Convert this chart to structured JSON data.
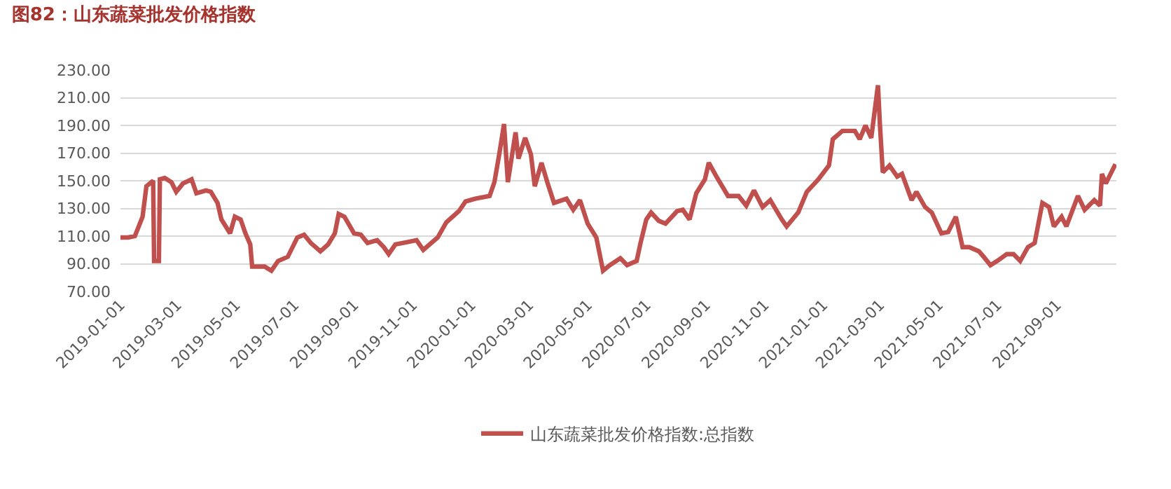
{
  "chart_data": {
    "type": "line",
    "title": "图82：山东蔬菜批发价格指数",
    "x": [
      "2019-01-01",
      "2019-01-09",
      "2019-01-16",
      "2019-01-24",
      "2019-01-28",
      "2019-02-04",
      "2019-02-05",
      "2019-02-10",
      "2019-02-11",
      "2019-02-16",
      "2019-02-23",
      "2019-02-28",
      "2019-03-07",
      "2019-03-16",
      "2019-03-21",
      "2019-03-31",
      "2019-04-05",
      "2019-04-12",
      "2019-04-16",
      "2019-04-25",
      "2019-04-30",
      "2019-05-06",
      "2019-05-11",
      "2019-05-16",
      "2019-05-18",
      "2019-05-31",
      "2019-06-07",
      "2019-06-14",
      "2019-06-24",
      "2019-07-04",
      "2019-07-11",
      "2019-07-18",
      "2019-07-28",
      "2019-08-05",
      "2019-08-12",
      "2019-08-16",
      "2019-08-22",
      "2019-09-01",
      "2019-09-08",
      "2019-09-15",
      "2019-09-25",
      "2019-10-02",
      "2019-10-07",
      "2019-10-14",
      "2019-10-29",
      "2019-11-05",
      "2019-11-12",
      "2019-11-27",
      "2019-12-06",
      "2019-12-19",
      "2019-12-26",
      "2020-01-05",
      "2020-01-20",
      "2020-01-25",
      "2020-01-30",
      "2020-02-04",
      "2020-02-08",
      "2020-02-16",
      "2020-02-19",
      "2020-02-26",
      "2020-03-03",
      "2020-03-07",
      "2020-03-14",
      "2020-03-20",
      "2020-03-27",
      "2020-04-09",
      "2020-04-16",
      "2020-04-23",
      "2020-05-01",
      "2020-05-10",
      "2020-05-17",
      "2020-05-24",
      "2020-06-04",
      "2020-06-11",
      "2020-06-21",
      "2020-06-25",
      "2020-07-01",
      "2020-07-06",
      "2020-07-14",
      "2020-07-21",
      "2020-08-02",
      "2020-08-08",
      "2020-08-15",
      "2020-08-22",
      "2020-08-31",
      "2020-09-04",
      "2020-09-12",
      "2020-09-24",
      "2020-10-05",
      "2020-10-13",
      "2020-10-21",
      "2020-10-30",
      "2020-11-07",
      "2020-11-19",
      "2020-11-24",
      "2020-12-06",
      "2020-12-15",
      "2020-12-27",
      "2021-01-07",
      "2021-01-11",
      "2021-01-21",
      "2021-02-03",
      "2021-02-08",
      "2021-02-14",
      "2021-02-20",
      "2021-02-27",
      "2021-03-01",
      "2021-03-04",
      "2021-03-11",
      "2021-03-19",
      "2021-03-24",
      "2021-04-03",
      "2021-04-08",
      "2021-04-17",
      "2021-04-24",
      "2021-05-04",
      "2021-05-11",
      "2021-05-19",
      "2021-05-26",
      "2021-06-02",
      "2021-06-12",
      "2021-06-17",
      "2021-06-24",
      "2021-07-01",
      "2021-07-11",
      "2021-07-18",
      "2021-07-25",
      "2021-08-02",
      "2021-08-09",
      "2021-08-17",
      "2021-08-24",
      "2021-08-29",
      "2021-09-06",
      "2021-09-11",
      "2021-09-23",
      "2021-09-30",
      "2021-10-10",
      "2021-10-16",
      "2021-10-18",
      "2021-10-22",
      "2021-10-27",
      "2021-11-01"
    ],
    "series": [
      {
        "name": "山东蔬菜批发价格指数:总指数",
        "color": "#c0504d",
        "values": [
          109,
          109,
          110,
          124,
          146,
          150,
          92,
          92,
          151,
          152,
          149,
          142,
          148,
          151,
          141,
          143,
          142,
          134,
          122,
          112,
          124,
          122,
          112,
          104,
          88,
          88,
          85,
          92,
          95,
          109,
          111,
          105,
          99,
          104,
          112,
          126,
          124,
          112,
          111,
          105,
          107,
          102,
          97,
          104,
          106,
          107,
          100,
          109,
          120,
          128,
          135,
          137,
          139,
          149,
          169,
          191,
          149,
          185,
          166,
          181,
          169,
          146,
          163,
          149,
          134,
          137,
          129,
          136,
          119,
          109,
          85,
          89,
          94,
          89,
          92,
          105,
          122,
          127,
          121,
          119,
          128,
          129,
          122,
          141,
          151,
          163,
          153,
          139,
          139,
          132,
          143,
          131,
          136,
          122,
          117,
          127,
          142,
          151,
          161,
          180,
          186,
          186,
          180,
          190,
          181,
          219,
          191,
          156,
          161,
          153,
          155,
          136,
          142,
          131,
          127,
          112,
          113,
          124,
          102,
          102,
          99,
          95,
          89,
          92,
          97,
          97,
          92,
          102,
          105,
          134,
          131,
          117,
          124,
          117,
          139,
          129,
          136,
          132,
          155,
          148,
          155,
          162
        ]
      }
    ],
    "xlim": [
      "2019-01-01",
      "2021-11-02"
    ],
    "xticks": [
      "2019-01-01",
      "2019-03-01",
      "2019-05-01",
      "2019-07-01",
      "2019-09-01",
      "2019-11-01",
      "2020-01-01",
      "2020-03-01",
      "2020-05-01",
      "2020-07-01",
      "2020-09-01",
      "2020-11-01",
      "2021-01-01",
      "2021-03-01",
      "2021-05-01",
      "2021-07-01",
      "2021-09-01"
    ],
    "ylim": [
      70,
      230
    ],
    "yticks": [
      {
        "value": 70,
        "label": "70.00"
      },
      {
        "value": 90,
        "label": "90.00"
      },
      {
        "value": 110,
        "label": "110.00"
      },
      {
        "value": 130,
        "label": "130.00"
      },
      {
        "value": 150,
        "label": "150.00"
      },
      {
        "value": 170,
        "label": "170.00"
      },
      {
        "value": 190,
        "label": "190.00"
      },
      {
        "value": 210,
        "label": "210.00"
      },
      {
        "value": 230,
        "label": "230.00"
      }
    ],
    "grid": "y",
    "legend": "bottom",
    "marker": "none",
    "line_style": "solid"
  }
}
